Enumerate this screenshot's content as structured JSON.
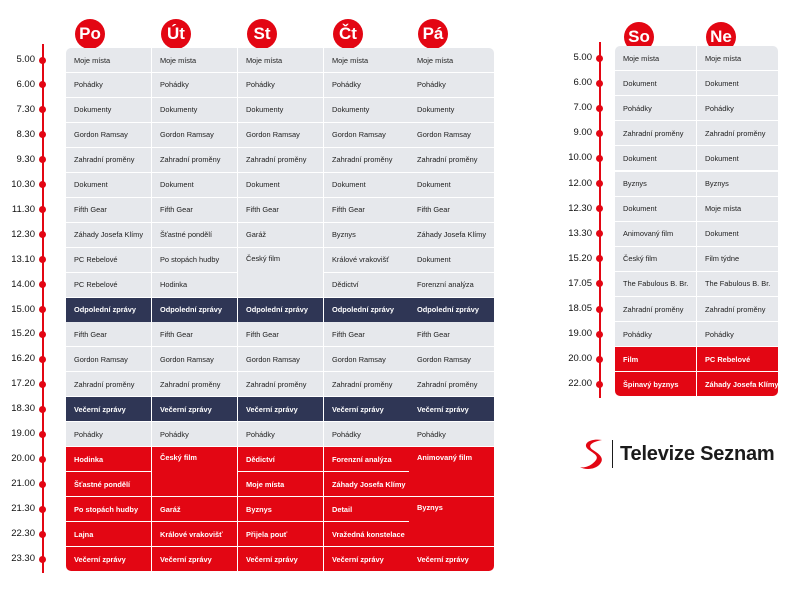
{
  "colors": {
    "accent": "#e30613",
    "gray_cell": "#e6e8ec",
    "navy_cell": "#2f3655"
  },
  "weekdays": {
    "days": [
      "Po",
      "Út",
      "St",
      "Čt",
      "Pá"
    ],
    "times": [
      "5.00",
      "6.00",
      "7.30",
      "8.30",
      "9.30",
      "10.30",
      "11.30",
      "12.30",
      "13.10",
      "14.00",
      "15.00",
      "15.20",
      "16.20",
      "17.20",
      "18.30",
      "19.00",
      "20.00",
      "21.00",
      "21.30",
      "22.30",
      "23.30"
    ],
    "cells": [
      {
        "row": 0,
        "col": 0,
        "span": 1,
        "cols": 1,
        "text": "Moje místa",
        "style": "gray"
      },
      {
        "row": 0,
        "col": 1,
        "span": 1,
        "cols": 1,
        "text": "Moje místa",
        "style": "gray"
      },
      {
        "row": 0,
        "col": 2,
        "span": 1,
        "cols": 1,
        "text": "Moje místa",
        "style": "gray"
      },
      {
        "row": 0,
        "col": 3,
        "span": 1,
        "cols": 1,
        "text": "Moje místa",
        "style": "gray"
      },
      {
        "row": 0,
        "col": 4,
        "span": 1,
        "cols": 1,
        "text": "Moje místa",
        "style": "gray"
      },
      {
        "row": 1,
        "col": 0,
        "span": 1,
        "cols": 1,
        "text": "Pohádky",
        "style": "gray"
      },
      {
        "row": 1,
        "col": 1,
        "span": 1,
        "cols": 1,
        "text": "Pohádky",
        "style": "gray"
      },
      {
        "row": 1,
        "col": 2,
        "span": 1,
        "cols": 1,
        "text": "Pohádky",
        "style": "gray"
      },
      {
        "row": 1,
        "col": 3,
        "span": 1,
        "cols": 1,
        "text": "Pohádky",
        "style": "gray"
      },
      {
        "row": 1,
        "col": 4,
        "span": 1,
        "cols": 1,
        "text": "Pohádky",
        "style": "gray"
      },
      {
        "row": 2,
        "col": 0,
        "span": 1,
        "cols": 1,
        "text": "Dokumenty",
        "style": "gray"
      },
      {
        "row": 2,
        "col": 1,
        "span": 1,
        "cols": 1,
        "text": "Dokumenty",
        "style": "gray"
      },
      {
        "row": 2,
        "col": 2,
        "span": 1,
        "cols": 1,
        "text": "Dokumenty",
        "style": "gray"
      },
      {
        "row": 2,
        "col": 3,
        "span": 1,
        "cols": 1,
        "text": "Dokumenty",
        "style": "gray"
      },
      {
        "row": 2,
        "col": 4,
        "span": 1,
        "cols": 1,
        "text": "Dokumenty",
        "style": "gray"
      },
      {
        "row": 3,
        "col": 0,
        "span": 1,
        "cols": 1,
        "text": "Gordon Ramsay",
        "style": "gray"
      },
      {
        "row": 3,
        "col": 1,
        "span": 1,
        "cols": 1,
        "text": "Gordon Ramsay",
        "style": "gray"
      },
      {
        "row": 3,
        "col": 2,
        "span": 1,
        "cols": 1,
        "text": "Gordon Ramsay",
        "style": "gray"
      },
      {
        "row": 3,
        "col": 3,
        "span": 1,
        "cols": 1,
        "text": "Gordon Ramsay",
        "style": "gray"
      },
      {
        "row": 3,
        "col": 4,
        "span": 1,
        "cols": 1,
        "text": "Gordon Ramsay",
        "style": "gray"
      },
      {
        "row": 4,
        "col": 0,
        "span": 1,
        "cols": 1,
        "text": "Zahradní proměny",
        "style": "gray"
      },
      {
        "row": 4,
        "col": 1,
        "span": 1,
        "cols": 1,
        "text": "Zahradní proměny",
        "style": "gray"
      },
      {
        "row": 4,
        "col": 2,
        "span": 1,
        "cols": 1,
        "text": "Zahradní proměny",
        "style": "gray"
      },
      {
        "row": 4,
        "col": 3,
        "span": 1,
        "cols": 1,
        "text": "Zahradní proměny",
        "style": "gray"
      },
      {
        "row": 4,
        "col": 4,
        "span": 1,
        "cols": 1,
        "text": "Zahradní proměny",
        "style": "gray"
      },
      {
        "row": 5,
        "col": 0,
        "span": 1,
        "cols": 1,
        "text": "Dokument",
        "style": "gray"
      },
      {
        "row": 5,
        "col": 1,
        "span": 1,
        "cols": 1,
        "text": "Dokument",
        "style": "gray"
      },
      {
        "row": 5,
        "col": 2,
        "span": 1,
        "cols": 1,
        "text": "Dokument",
        "style": "gray"
      },
      {
        "row": 5,
        "col": 3,
        "span": 1,
        "cols": 1,
        "text": "Dokument",
        "style": "gray"
      },
      {
        "row": 5,
        "col": 4,
        "span": 1,
        "cols": 1,
        "text": "Dokument",
        "style": "gray"
      },
      {
        "row": 6,
        "col": 0,
        "span": 1,
        "cols": 1,
        "text": "Fifth Gear",
        "style": "gray"
      },
      {
        "row": 6,
        "col": 1,
        "span": 1,
        "cols": 1,
        "text": "Fifth Gear",
        "style": "gray"
      },
      {
        "row": 6,
        "col": 2,
        "span": 1,
        "cols": 1,
        "text": "Fifth Gear",
        "style": "gray"
      },
      {
        "row": 6,
        "col": 3,
        "span": 1,
        "cols": 1,
        "text": "Fifth Gear",
        "style": "gray"
      },
      {
        "row": 6,
        "col": 4,
        "span": 1,
        "cols": 1,
        "text": "Fifth Gear",
        "style": "gray"
      },
      {
        "row": 7,
        "col": 0,
        "span": 1,
        "cols": 1,
        "text": "Záhady Josefa Klímy",
        "style": "gray"
      },
      {
        "row": 7,
        "col": 1,
        "span": 1,
        "cols": 1,
        "text": "Šťastné pondělí",
        "style": "gray"
      },
      {
        "row": 7,
        "col": 2,
        "span": 1,
        "cols": 1,
        "text": "Garáž",
        "style": "gray"
      },
      {
        "row": 7,
        "col": 3,
        "span": 1,
        "cols": 1,
        "text": "Byznys",
        "style": "gray"
      },
      {
        "row": 7,
        "col": 4,
        "span": 1,
        "cols": 1,
        "text": "Záhady Josefa Klímy",
        "style": "gray"
      },
      {
        "row": 8,
        "col": 0,
        "span": 1,
        "cols": 1,
        "text": "PC Rebelové",
        "style": "gray"
      },
      {
        "row": 8,
        "col": 1,
        "span": 1,
        "cols": 1,
        "text": "Po stopách hudby",
        "style": "gray"
      },
      {
        "row": 8,
        "col": 2,
        "span": 2,
        "cols": 1,
        "text": "Český film",
        "style": "gray"
      },
      {
        "row": 8,
        "col": 3,
        "span": 1,
        "cols": 1,
        "text": "Králové vrakovišť",
        "style": "gray"
      },
      {
        "row": 8,
        "col": 4,
        "span": 1,
        "cols": 1,
        "text": "Dokument",
        "style": "gray"
      },
      {
        "row": 9,
        "col": 0,
        "span": 1,
        "cols": 1,
        "text": "PC Rebelové",
        "style": "gray"
      },
      {
        "row": 9,
        "col": 1,
        "span": 1,
        "cols": 1,
        "text": "Hodinka",
        "style": "gray"
      },
      {
        "row": 9,
        "col": 3,
        "span": 1,
        "cols": 1,
        "text": "Dědictví",
        "style": "gray"
      },
      {
        "row": 9,
        "col": 4,
        "span": 1,
        "cols": 1,
        "text": "Forenzní analýza",
        "style": "gray"
      },
      {
        "row": 10,
        "col": 0,
        "span": 1,
        "cols": 1,
        "text": "Odpolední zprávy",
        "style": "navy"
      },
      {
        "row": 10,
        "col": 1,
        "span": 1,
        "cols": 1,
        "text": "Odpolední zprávy",
        "style": "navy"
      },
      {
        "row": 10,
        "col": 2,
        "span": 1,
        "cols": 1,
        "text": "Odpolední zprávy",
        "style": "navy"
      },
      {
        "row": 10,
        "col": 3,
        "span": 1,
        "cols": 1,
        "text": "Odpolední zprávy",
        "style": "navy"
      },
      {
        "row": 10,
        "col": 4,
        "span": 1,
        "cols": 1,
        "text": "Odpolední zprávy",
        "style": "navy"
      },
      {
        "row": 11,
        "col": 0,
        "span": 1,
        "cols": 1,
        "text": "Fifth Gear",
        "style": "gray"
      },
      {
        "row": 11,
        "col": 1,
        "span": 1,
        "cols": 1,
        "text": "Fifth Gear",
        "style": "gray"
      },
      {
        "row": 11,
        "col": 2,
        "span": 1,
        "cols": 1,
        "text": "Fifth Gear",
        "style": "gray"
      },
      {
        "row": 11,
        "col": 3,
        "span": 1,
        "cols": 1,
        "text": "Fifth Gear",
        "style": "gray"
      },
      {
        "row": 11,
        "col": 4,
        "span": 1,
        "cols": 1,
        "text": "Fifth Gear",
        "style": "gray"
      },
      {
        "row": 12,
        "col": 0,
        "span": 1,
        "cols": 1,
        "text": "Gordon Ramsay",
        "style": "gray"
      },
      {
        "row": 12,
        "col": 1,
        "span": 1,
        "cols": 1,
        "text": "Gordon Ramsay",
        "style": "gray"
      },
      {
        "row": 12,
        "col": 2,
        "span": 1,
        "cols": 1,
        "text": "Gordon Ramsay",
        "style": "gray"
      },
      {
        "row": 12,
        "col": 3,
        "span": 1,
        "cols": 1,
        "text": "Gordon Ramsay",
        "style": "gray"
      },
      {
        "row": 12,
        "col": 4,
        "span": 1,
        "cols": 1,
        "text": "Gordon Ramsay",
        "style": "gray"
      },
      {
        "row": 13,
        "col": 0,
        "span": 1,
        "cols": 1,
        "text": "Zahradní proměny",
        "style": "gray"
      },
      {
        "row": 13,
        "col": 1,
        "span": 1,
        "cols": 1,
        "text": "Zahradní proměny",
        "style": "gray"
      },
      {
        "row": 13,
        "col": 2,
        "span": 1,
        "cols": 1,
        "text": "Zahradní proměny",
        "style": "gray"
      },
      {
        "row": 13,
        "col": 3,
        "span": 1,
        "cols": 1,
        "text": "Zahradní proměny",
        "style": "gray"
      },
      {
        "row": 13,
        "col": 4,
        "span": 1,
        "cols": 1,
        "text": "Zahradní proměny",
        "style": "gray"
      },
      {
        "row": 14,
        "col": 0,
        "span": 1,
        "cols": 1,
        "text": "Večerní zprávy",
        "style": "navy"
      },
      {
        "row": 14,
        "col": 1,
        "span": 1,
        "cols": 1,
        "text": "Večerní zprávy",
        "style": "navy"
      },
      {
        "row": 14,
        "col": 2,
        "span": 1,
        "cols": 1,
        "text": "Večerní zprávy",
        "style": "navy"
      },
      {
        "row": 14,
        "col": 3,
        "span": 1,
        "cols": 1,
        "text": "Večerní zprávy",
        "style": "navy"
      },
      {
        "row": 14,
        "col": 4,
        "span": 1,
        "cols": 1,
        "text": "Večerní zprávy",
        "style": "navy"
      },
      {
        "row": 15,
        "col": 0,
        "span": 1,
        "cols": 1,
        "text": "Pohádky",
        "style": "gray"
      },
      {
        "row": 15,
        "col": 1,
        "span": 1,
        "cols": 1,
        "text": "Pohádky",
        "style": "gray"
      },
      {
        "row": 15,
        "col": 2,
        "span": 1,
        "cols": 1,
        "text": "Pohádky",
        "style": "gray"
      },
      {
        "row": 15,
        "col": 3,
        "span": 1,
        "cols": 1,
        "text": "Pohádky",
        "style": "gray"
      },
      {
        "row": 15,
        "col": 4,
        "span": 1,
        "cols": 1,
        "text": "Pohádky",
        "style": "gray"
      },
      {
        "row": 16,
        "col": 0,
        "span": 1,
        "cols": 1,
        "text": "Hodinka",
        "style": "red"
      },
      {
        "row": 16,
        "col": 1,
        "span": 2,
        "cols": 1,
        "text": "Český film",
        "style": "red"
      },
      {
        "row": 16,
        "col": 2,
        "span": 1,
        "cols": 1,
        "text": "Dědictví",
        "style": "red"
      },
      {
        "row": 16,
        "col": 3,
        "span": 1,
        "cols": 1,
        "text": "Forenzní analýza",
        "style": "red"
      },
      {
        "row": 16,
        "col": 4,
        "span": 2,
        "cols": 1,
        "text": "Animovaný film",
        "style": "red"
      },
      {
        "row": 17,
        "col": 0,
        "span": 1,
        "cols": 1,
        "text": "Šťastné pondělí",
        "style": "red"
      },
      {
        "row": 17,
        "col": 2,
        "span": 1,
        "cols": 1,
        "text": "Moje místa",
        "style": "red"
      },
      {
        "row": 17,
        "col": 3,
        "span": 1,
        "cols": 1,
        "text": "Záhady Josefa Klímy",
        "style": "red"
      },
      {
        "row": 18,
        "col": 0,
        "span": 1,
        "cols": 1,
        "text": "Po stopách hudby",
        "style": "red"
      },
      {
        "row": 18,
        "col": 1,
        "span": 1,
        "cols": 1,
        "text": "Garáž",
        "style": "red"
      },
      {
        "row": 18,
        "col": 2,
        "span": 1,
        "cols": 1,
        "text": "Byznys",
        "style": "red"
      },
      {
        "row": 18,
        "col": 3,
        "span": 1,
        "cols": 1,
        "text": "Detail",
        "style": "red"
      },
      {
        "row": 18,
        "col": 4,
        "span": 2,
        "cols": 1,
        "text": "Byznys",
        "style": "red"
      },
      {
        "row": 19,
        "col": 0,
        "span": 1,
        "cols": 1,
        "text": "Lajna",
        "style": "red"
      },
      {
        "row": 19,
        "col": 1,
        "span": 1,
        "cols": 1,
        "text": "Králové vrakovišť",
        "style": "red"
      },
      {
        "row": 19,
        "col": 2,
        "span": 1,
        "cols": 1,
        "text": "Přijela pouť",
        "style": "red"
      },
      {
        "row": 19,
        "col": 3,
        "span": 1,
        "cols": 1,
        "text": "Vražedná konstelace",
        "style": "red"
      },
      {
        "row": 20,
        "col": 0,
        "span": 1,
        "cols": 1,
        "text": "Večerní zprávy",
        "style": "red"
      },
      {
        "row": 20,
        "col": 1,
        "span": 1,
        "cols": 1,
        "text": "Večerní zprávy",
        "style": "red"
      },
      {
        "row": 20,
        "col": 2,
        "span": 1,
        "cols": 1,
        "text": "Večerní zprávy",
        "style": "red"
      },
      {
        "row": 20,
        "col": 3,
        "span": 1,
        "cols": 1,
        "text": "Večerní zprávy",
        "style": "red"
      },
      {
        "row": 20,
        "col": 4,
        "span": 1,
        "cols": 1,
        "text": "Večerní zprávy",
        "style": "red"
      }
    ]
  },
  "weekend": {
    "days": [
      "So",
      "Ne"
    ],
    "times": [
      "5.00",
      "6.00",
      "7.00",
      "9.00",
      "10.00",
      "12.00",
      "12.30",
      "13.30",
      "15.20",
      "17.05",
      "18.05",
      "19.00",
      "20.00",
      "22.00"
    ],
    "cells": [
      {
        "row": 0,
        "col": 0,
        "span": 1,
        "cols": 1,
        "text": "Moje místa",
        "style": "gray"
      },
      {
        "row": 0,
        "col": 1,
        "span": 1,
        "cols": 1,
        "text": "Moje místa",
        "style": "gray"
      },
      {
        "row": 1,
        "col": 0,
        "span": 1,
        "cols": 1,
        "text": "Dokument",
        "style": "gray"
      },
      {
        "row": 1,
        "col": 1,
        "span": 1,
        "cols": 1,
        "text": "Dokument",
        "style": "gray"
      },
      {
        "row": 2,
        "col": 0,
        "span": 1,
        "cols": 1,
        "text": "Pohádky",
        "style": "gray"
      },
      {
        "row": 2,
        "col": 1,
        "span": 1,
        "cols": 1,
        "text": "Pohádky",
        "style": "gray"
      },
      {
        "row": 3,
        "col": 0,
        "span": 1,
        "cols": 1,
        "text": "Zahradní proměny",
        "style": "gray"
      },
      {
        "row": 3,
        "col": 1,
        "span": 1,
        "cols": 1,
        "text": "Zahradní proměny",
        "style": "gray"
      },
      {
        "row": 4,
        "col": 0,
        "span": 1,
        "cols": 1,
        "text": "Dokument",
        "style": "gray"
      },
      {
        "row": 4,
        "col": 1,
        "span": 1,
        "cols": 1,
        "text": "Dokument",
        "style": "gray"
      },
      {
        "row": 5,
        "col": 0,
        "span": 1,
        "cols": 1,
        "text": "Byznys",
        "style": "gray"
      },
      {
        "row": 5,
        "col": 1,
        "span": 1,
        "cols": 1,
        "text": "Byznys",
        "style": "gray"
      },
      {
        "row": 6,
        "col": 0,
        "span": 1,
        "cols": 1,
        "text": "Dokument",
        "style": "gray"
      },
      {
        "row": 6,
        "col": 1,
        "span": 1,
        "cols": 1,
        "text": "Moje místa",
        "style": "gray"
      },
      {
        "row": 7,
        "col": 0,
        "span": 1,
        "cols": 1,
        "text": "Animovaný film",
        "style": "gray"
      },
      {
        "row": 7,
        "col": 1,
        "span": 1,
        "cols": 1,
        "text": "Dokument",
        "style": "gray"
      },
      {
        "row": 8,
        "col": 0,
        "span": 1,
        "cols": 1,
        "text": "Český film",
        "style": "gray"
      },
      {
        "row": 8,
        "col": 1,
        "span": 1,
        "cols": 1,
        "text": "Film týdne",
        "style": "gray"
      },
      {
        "row": 9,
        "col": 0,
        "span": 1,
        "cols": 1,
        "text": "The Fabulous B. Br.",
        "style": "gray"
      },
      {
        "row": 9,
        "col": 1,
        "span": 1,
        "cols": 1,
        "text": "The Fabulous B. Br.",
        "style": "gray"
      },
      {
        "row": 10,
        "col": 0,
        "span": 1,
        "cols": 1,
        "text": "Zahradní proměny",
        "style": "gray"
      },
      {
        "row": 10,
        "col": 1,
        "span": 1,
        "cols": 1,
        "text": "Zahradní proměny",
        "style": "gray"
      },
      {
        "row": 11,
        "col": 0,
        "span": 1,
        "cols": 1,
        "text": "Pohádky",
        "style": "gray"
      },
      {
        "row": 11,
        "col": 1,
        "span": 1,
        "cols": 1,
        "text": "Pohádky",
        "style": "gray"
      },
      {
        "row": 12,
        "col": 0,
        "span": 1,
        "cols": 1,
        "text": "Film",
        "style": "red"
      },
      {
        "row": 12,
        "col": 1,
        "span": 1,
        "cols": 1,
        "text": "PC Rebelové",
        "style": "red"
      },
      {
        "row": 13,
        "col": 0,
        "span": 1,
        "cols": 1,
        "text": "Špinavý byznys",
        "style": "red"
      },
      {
        "row": 13,
        "col": 1,
        "span": 1,
        "cols": 1,
        "text": "Záhady Josefa Klímy",
        "style": "red"
      }
    ]
  },
  "logo": {
    "text": "Televize Seznam",
    "icon": "seznam-s-icon"
  }
}
